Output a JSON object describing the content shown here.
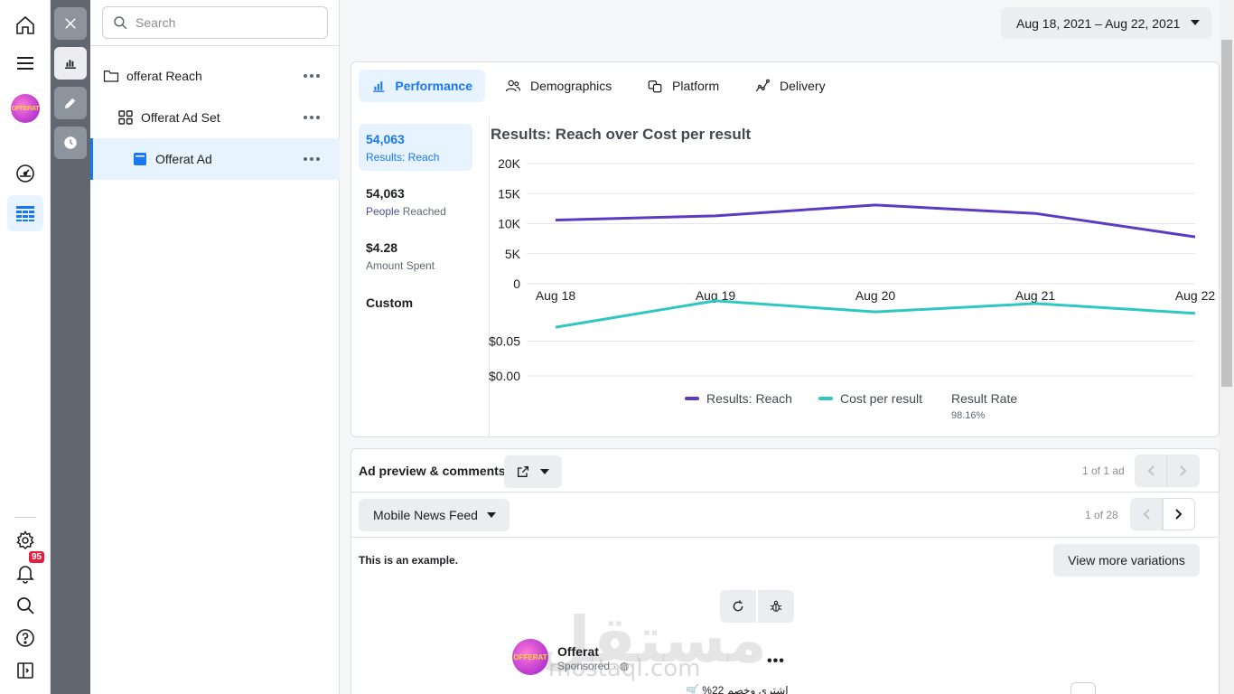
{
  "nav": {
    "notifications_count": "95",
    "account_logo_text": "OFFERAT",
    "icons": [
      "home-icon",
      "menu-icon",
      "account-avatar",
      "dashboard-gauge-icon",
      "table-icon",
      "gear-icon",
      "bell-icon",
      "search-icon",
      "help-icon",
      "sidebar-toggle-icon"
    ]
  },
  "tree": {
    "search_placeholder": "Search",
    "items": [
      {
        "label": "offerat Reach",
        "level": "campaign"
      },
      {
        "label": "Offerat Ad Set",
        "level": "adset"
      },
      {
        "label": "Offerat Ad",
        "level": "ad"
      }
    ]
  },
  "header": {
    "date_range": "Aug 18, 2021 – Aug 22, 2021"
  },
  "insights": {
    "tabs": [
      "Performance",
      "Demographics",
      "Platform",
      "Delivery"
    ],
    "active_tab": "Performance",
    "metrics": [
      {
        "value": "54,063",
        "label": "Results: Reach"
      },
      {
        "value": "54,063",
        "label_part1": "People",
        "label_part2": " Reached"
      },
      {
        "value": "$4.28",
        "label": "Amount Spent"
      },
      {
        "value": "Custom",
        "label": ""
      }
    ],
    "legend": {
      "reach": "Results: Reach",
      "cost": "Cost per result",
      "rate_label": "Result Rate",
      "rate_value": "98.16%"
    },
    "colors": {
      "reach": "#5b3bc4",
      "cost": "#2ec7c4"
    }
  },
  "chart_data": [
    {
      "type": "line",
      "title": "Results: Reach over Cost per result",
      "x": [
        "Aug 18",
        "Aug 19",
        "Aug 20",
        "Aug 21",
        "Aug 22"
      ],
      "ylim": [
        0,
        20000
      ],
      "yticks": [
        "20K",
        "15K",
        "10K",
        "5K",
        "0"
      ],
      "yticks_values": [
        20000,
        15000,
        10000,
        5000,
        0
      ],
      "series": [
        {
          "name": "Results: Reach",
          "values": [
            10600,
            11300,
            13100,
            11700,
            7800
          ]
        }
      ]
    },
    {
      "type": "line",
      "x": [
        "Aug 18",
        "Aug 19",
        "Aug 20",
        "Aug 21",
        "Aug 22"
      ],
      "ylim": [
        0,
        0.1
      ],
      "yticks": [
        "$0.05",
        "$0.00"
      ],
      "yticks_values": [
        0.05,
        0
      ],
      "series": [
        {
          "name": "Cost per result",
          "values": [
            0.07,
            0.108,
            0.092,
            0.104,
            0.09
          ]
        }
      ]
    }
  ],
  "preview": {
    "title": "Ad preview & comments",
    "ad_pager": "1 of 1 ad",
    "placement": "Mobile News Feed",
    "placement_pager": "1 of 28",
    "example_note": "This is an example.",
    "variations_button": "View more variations",
    "post": {
      "page_name": "Offerat",
      "sponsored": "Sponsored · ",
      "text": "اشتري وخصم 22% 🛒"
    },
    "watermark": "مستقل",
    "watermark_url": "mostaql.com"
  }
}
